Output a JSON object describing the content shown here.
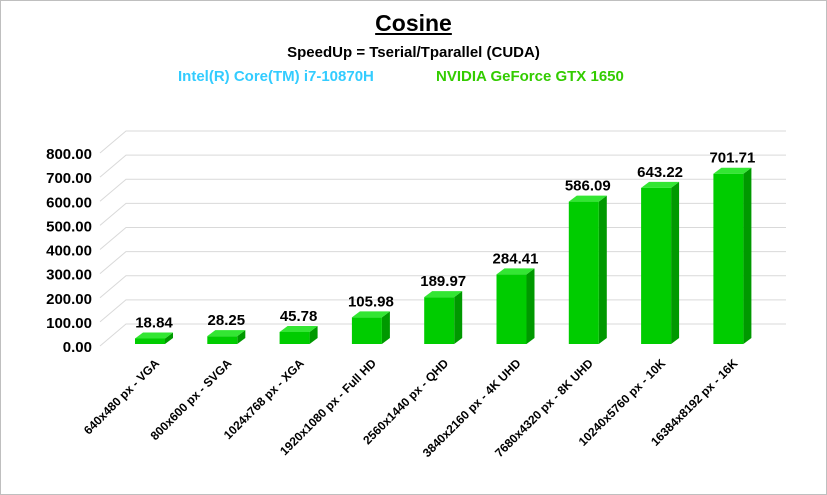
{
  "chart_data": {
    "type": "bar",
    "title": "Cosine",
    "subtitle": "SpeedUp = Tserial/Tparallel (CUDA)",
    "hardware": {
      "cpu": "Intel(R) Core(TM) i7-10870H",
      "gpu": "NVIDIA GeForce GTX 1650"
    },
    "categories": [
      "640x480 px - VGA",
      "800x600 px - SVGA",
      "1024x768 px - XGA",
      "1920x1080 px - Full HD",
      "2560x1440 px - QHD",
      "3840x2160 px - 4K UHD",
      "7680x4320 px - 8K UHD",
      "10240x5760 px - 10K",
      "16384x8192 px - 16K"
    ],
    "values": [
      18.84,
      28.25,
      45.78,
      105.98,
      189.97,
      284.41,
      586.09,
      643.22,
      701.71
    ],
    "data_labels": [
      "18.84",
      "28.25",
      "45.78",
      "105.98",
      "189.97",
      "284.41",
      "586.09",
      "643.22",
      "701.71"
    ],
    "yticks": [
      "0.00",
      "100.00",
      "200.00",
      "300.00",
      "400.00",
      "500.00",
      "600.00",
      "700.00",
      "800.00"
    ],
    "ylim": [
      0,
      800
    ],
    "grid": true,
    "legend": "none",
    "colors": {
      "bar_front": "#00cc00",
      "bar_top": "#33e633",
      "bar_side": "#009900",
      "cpu_text": "#33ccff",
      "gpu_text": "#33cc00",
      "grid": "#d9d9d9"
    }
  }
}
